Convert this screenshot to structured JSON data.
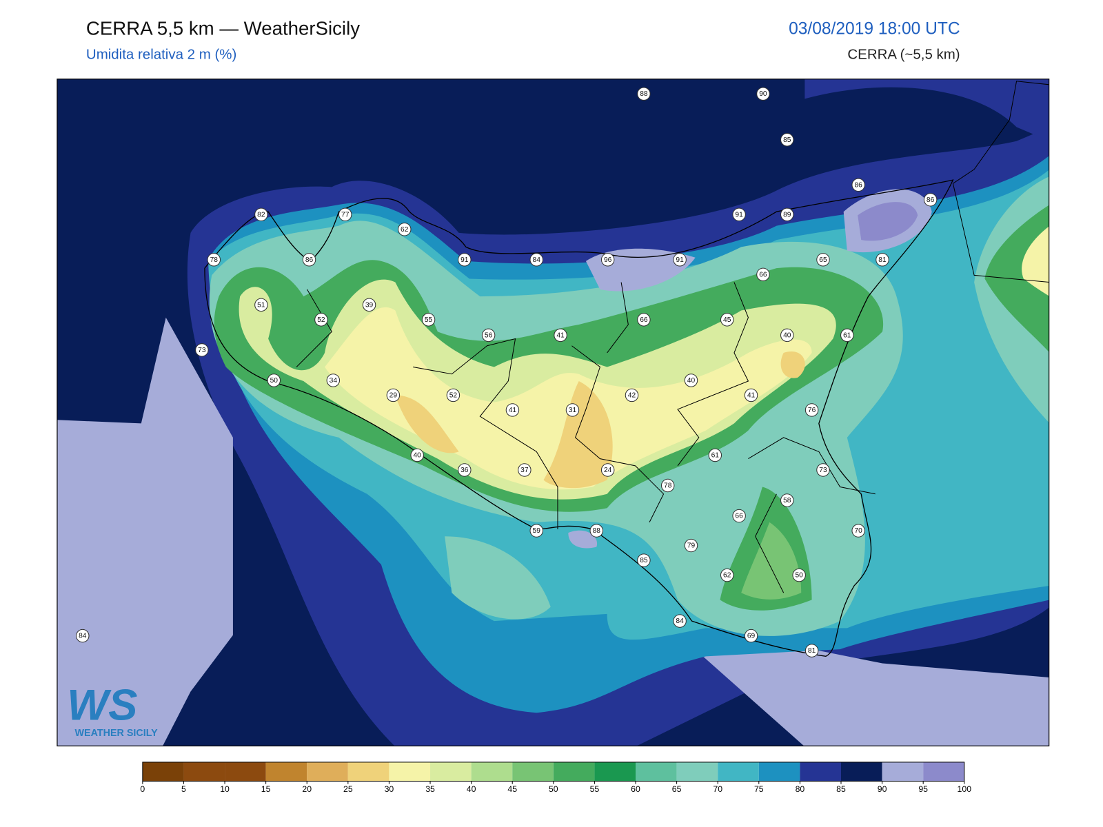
{
  "header": {
    "title": "CERRA 5,5 km — WeatherSicily",
    "subtitle": "Umidita relativa 2 m (%)",
    "timestamp": "03/08/2019 18:00 UTC",
    "model": "CERRA (~5,5 km)"
  },
  "logo": {
    "mark": "WS",
    "text": "WEATHER SICILY"
  },
  "stations": [
    88,
    90,
    85,
    86,
    86,
    82,
    77,
    62,
    91,
    89,
    78,
    86,
    91,
    84,
    96,
    91,
    66,
    65,
    81,
    51,
    39,
    52,
    55,
    56,
    41,
    66,
    45,
    40,
    61,
    73,
    50,
    34,
    29,
    52,
    42,
    40,
    41,
    41,
    31,
    76,
    61,
    40,
    36,
    37,
    24,
    73,
    78,
    58,
    66,
    59,
    88,
    70,
    79,
    85,
    62,
    50,
    84,
    69,
    81,
    84
  ],
  "colorbar": {
    "ticks": [
      0,
      5,
      10,
      15,
      20,
      25,
      30,
      35,
      40,
      45,
      50,
      55,
      60,
      65,
      70,
      75,
      80,
      85,
      90,
      95,
      100
    ],
    "colors": [
      "#7a4108",
      "#8c4a0f",
      "#8c4a0f",
      "#c0842e",
      "#dfae5a",
      "#efd27a",
      "#f5f3a8",
      "#d9eca0",
      "#aedd8e",
      "#78c474",
      "#44ab5d",
      "#1a9850",
      "#5ec09e",
      "#7fcdbb",
      "#41b6c4",
      "#1d91c0",
      "#253494",
      "#081d58",
      "#a6acd9",
      "#8c8acb"
    ]
  }
}
